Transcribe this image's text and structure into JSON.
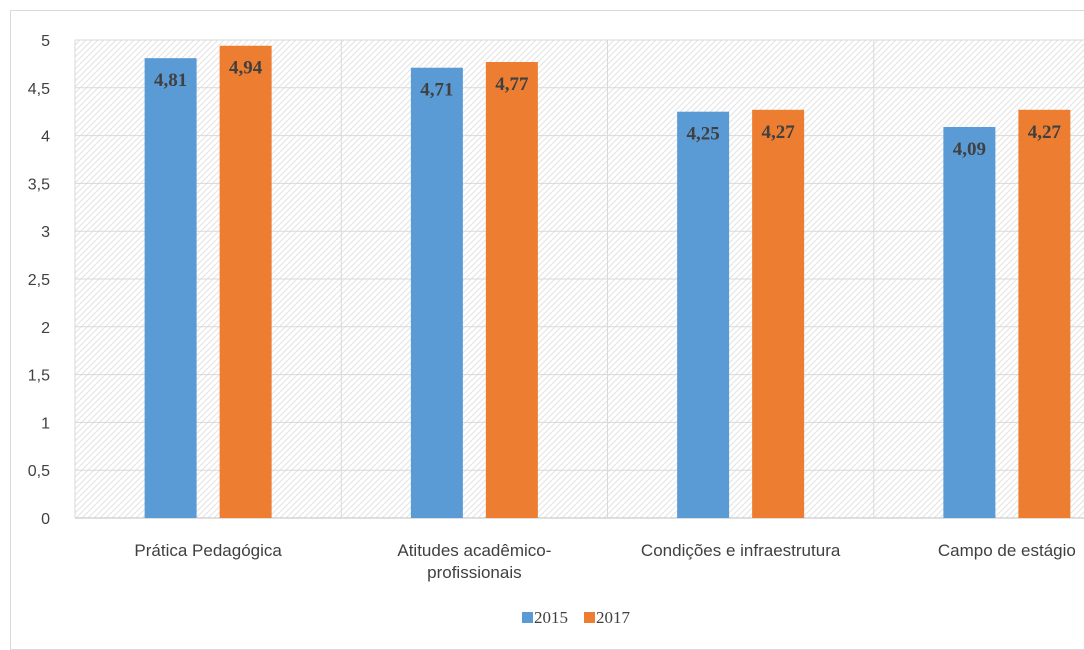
{
  "chart_data": {
    "type": "bar",
    "categories": [
      [
        "Prática Pedagógica"
      ],
      [
        "Atitudes acadêmico-",
        "profissionais"
      ],
      [
        "Condições e infraestrutura"
      ],
      [
        "Campo de estágio"
      ]
    ],
    "series": [
      {
        "name": "2015",
        "color": "#5b9bd5",
        "values": [
          4.81,
          4.71,
          4.25,
          4.09
        ],
        "labels": [
          "4,81",
          "4,71",
          "4,25",
          "4,09"
        ]
      },
      {
        "name": "2017",
        "color": "#ed7d31",
        "values": [
          4.94,
          4.77,
          4.27,
          4.27
        ],
        "labels": [
          "4,94",
          "4,77",
          "4,27",
          "4,27"
        ]
      }
    ],
    "ylim": [
      0,
      5
    ],
    "yticks": [
      0,
      0.5,
      1,
      1.5,
      2,
      2.5,
      3,
      3.5,
      4,
      4.5,
      5
    ],
    "ytick_labels": [
      "0",
      "0,5",
      "1",
      "1,5",
      "2",
      "2,5",
      "3",
      "3,5",
      "4",
      "4,5",
      "5"
    ],
    "grid": true,
    "legend": "bottom",
    "title": "",
    "xlabel": "",
    "ylabel": ""
  }
}
